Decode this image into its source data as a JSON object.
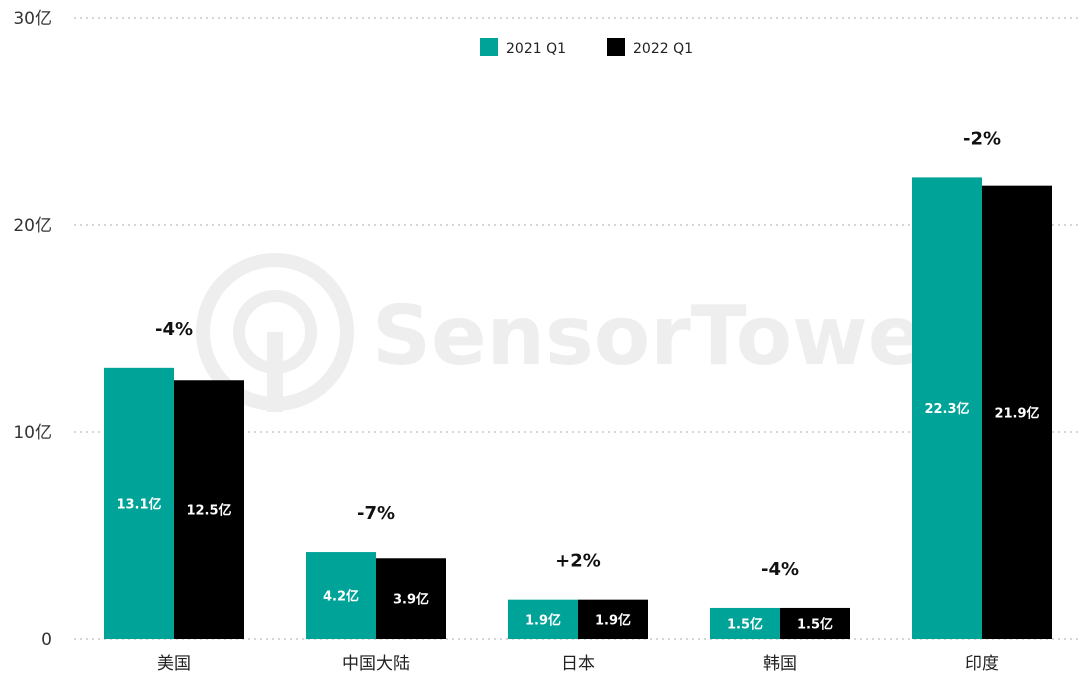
{
  "chart_data": {
    "type": "bar",
    "categories": [
      "美国",
      "中国大陆",
      "日本",
      "韩国",
      "印度"
    ],
    "series": [
      {
        "name": "2021 Q1",
        "color": "#00a398",
        "values": [
          13.1,
          4.2,
          1.9,
          1.5,
          22.3
        ],
        "labels": [
          "13.1亿",
          "4.2亿",
          "1.9亿",
          "1.5亿",
          "22.3亿"
        ]
      },
      {
        "name": "2022 Q1",
        "color": "#000000",
        "values": [
          12.5,
          3.9,
          1.9,
          1.5,
          21.9
        ],
        "labels": [
          "12.5亿",
          "3.9亿",
          "1.9亿",
          "1.5亿",
          "21.9亿"
        ]
      }
    ],
    "changes": [
      "-4%",
      "-7%",
      "+2%",
      "-4%",
      "-2%"
    ],
    "y_ticks": [
      {
        "value": 0,
        "label": "0"
      },
      {
        "value": 10,
        "label": "10亿"
      },
      {
        "value": 20,
        "label": "20亿"
      },
      {
        "value": 30,
        "label": "30亿"
      }
    ],
    "ylim": [
      0,
      30
    ],
    "grid": true,
    "legend_position": "top-center",
    "watermark": "SensorTower"
  }
}
